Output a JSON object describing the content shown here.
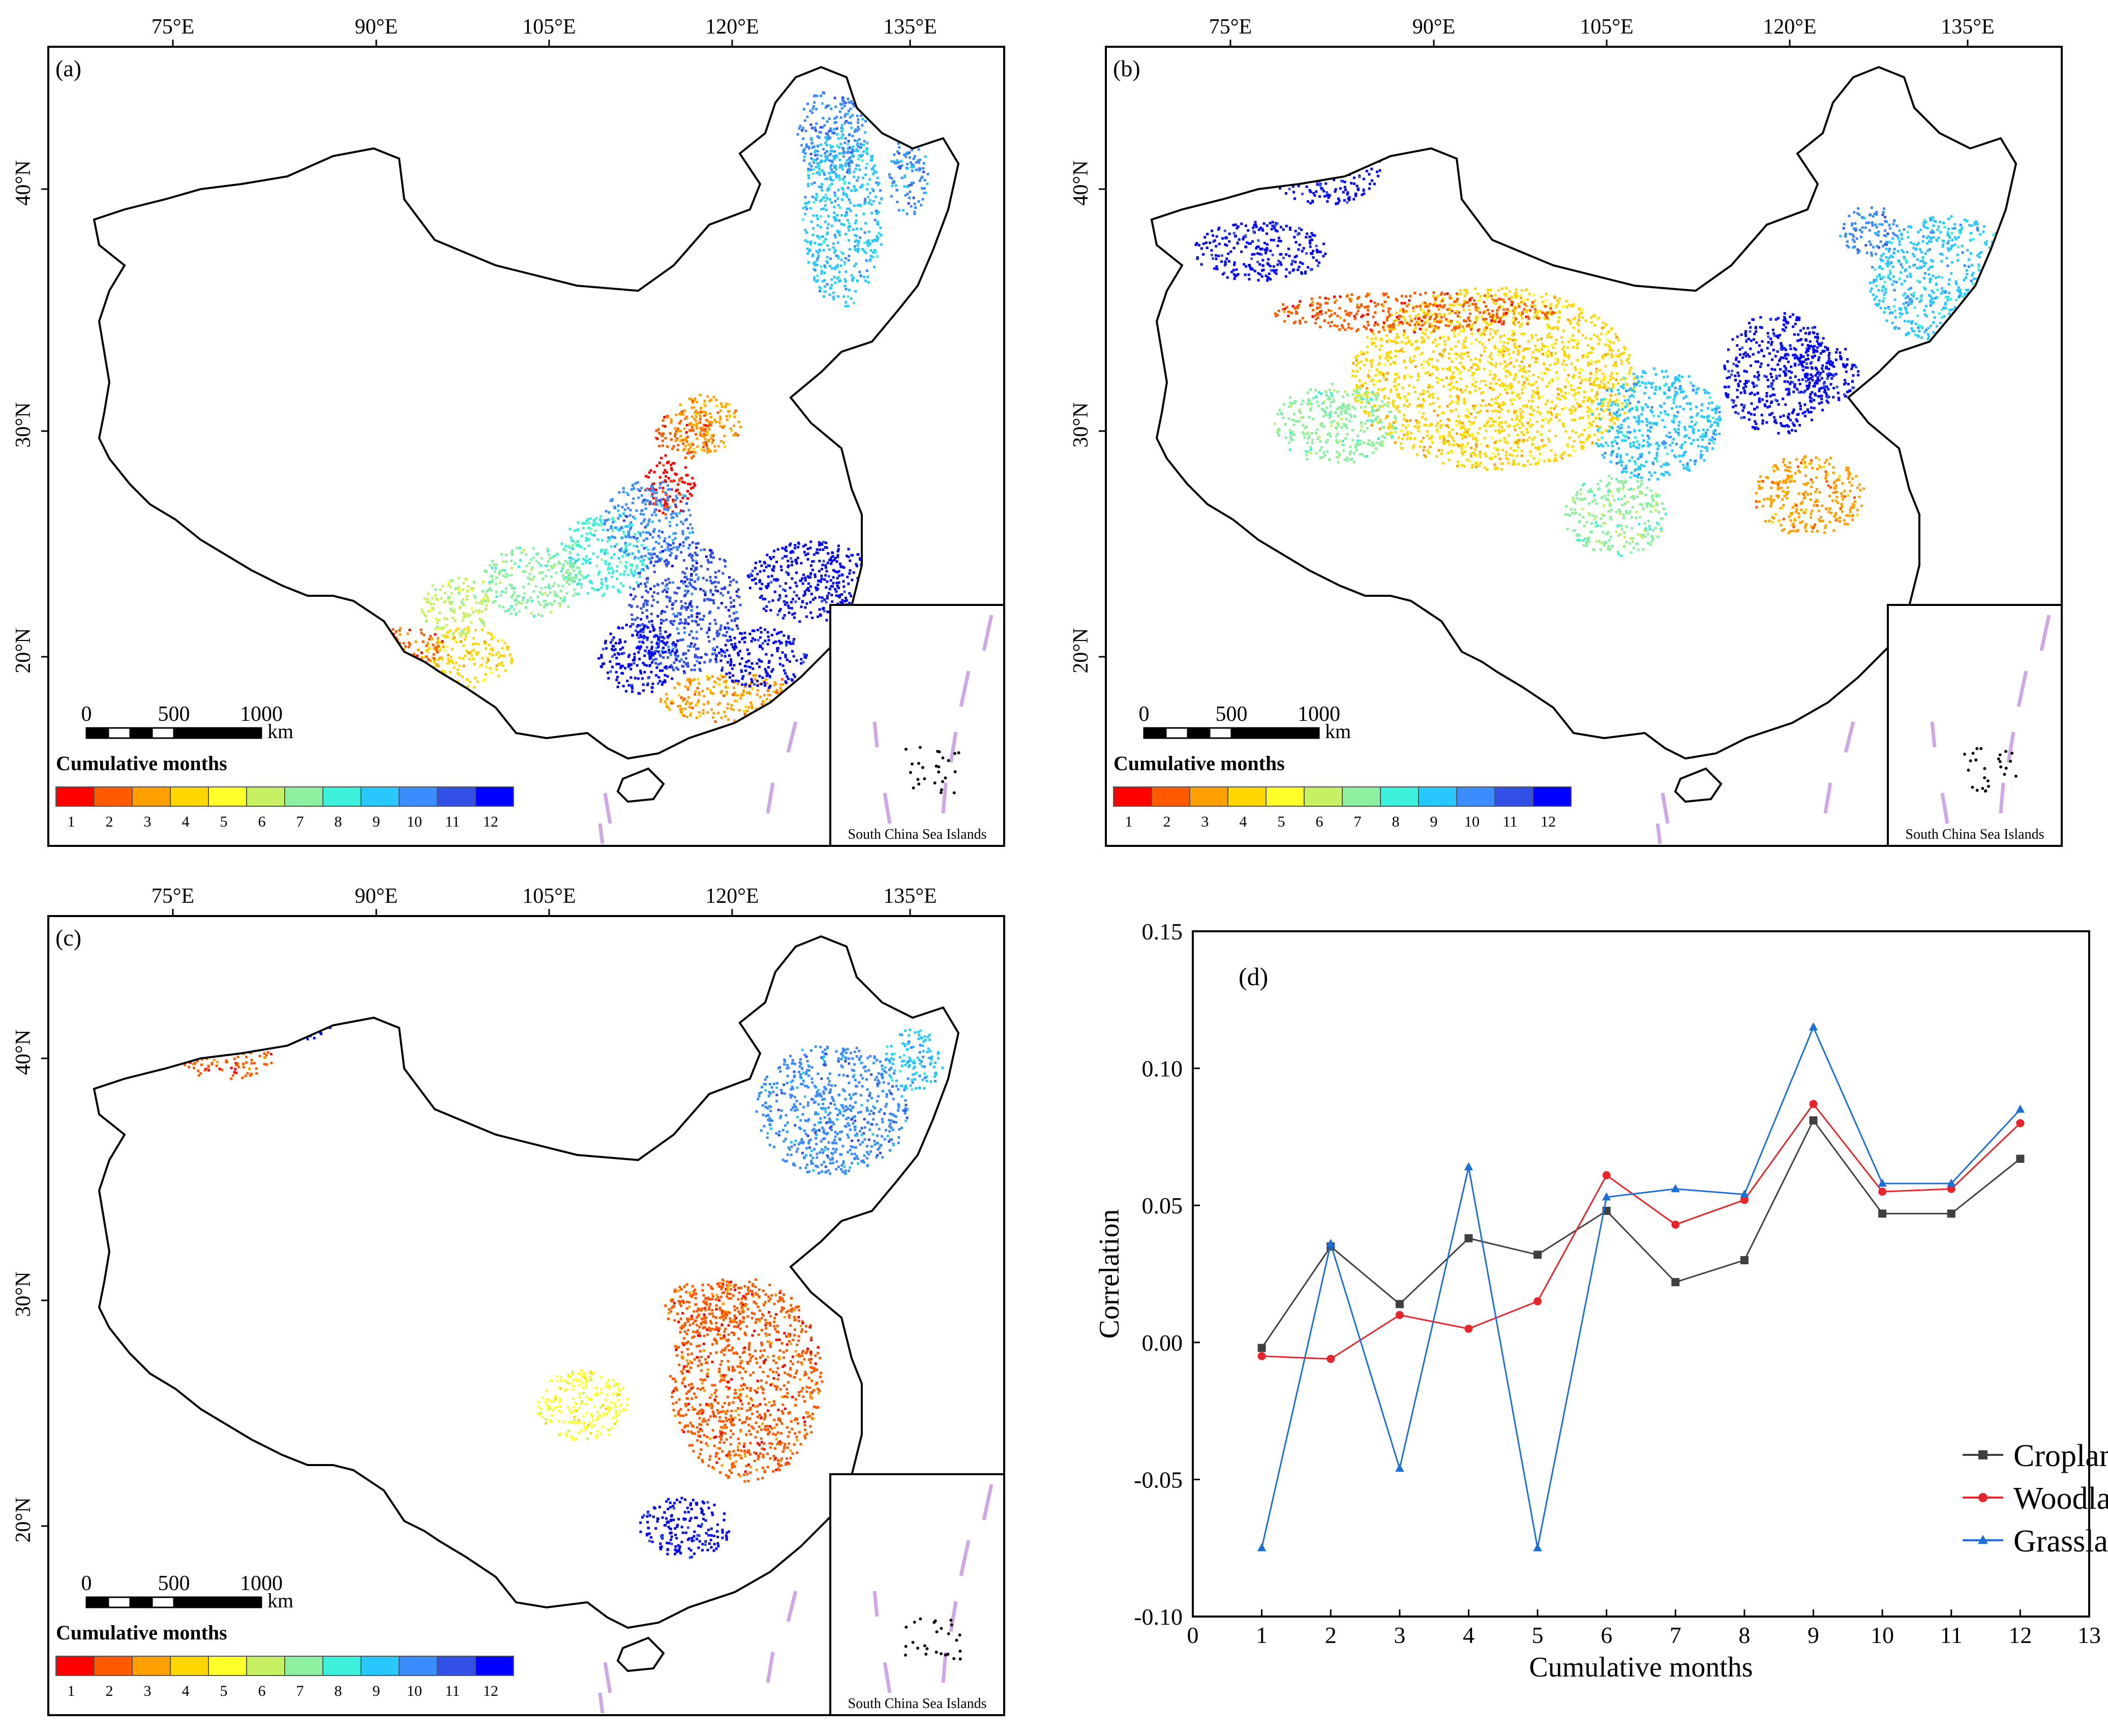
{
  "figure": {
    "panels": [
      {
        "id": "a",
        "panel_label": "(a)",
        "lon_ticks": [
          "75°E",
          "90°E",
          "105°E",
          "120°E",
          "135°E"
        ],
        "lat_ticks": [
          "40°N",
          "30°N",
          "20°N"
        ],
        "scale_labels": [
          "0",
          "500",
          "1000"
        ],
        "scale_unit": "km",
        "legend_title": "Cumulative months",
        "inset_label": "South China Sea Islands"
      },
      {
        "id": "b",
        "panel_label": "(b)",
        "lon_ticks": [
          "75°E",
          "90°E",
          "105°E",
          "120°E",
          "135°E"
        ],
        "lat_ticks": [
          "40°N",
          "30°N",
          "20°N"
        ],
        "scale_labels": [
          "0",
          "500",
          "1000"
        ],
        "scale_unit": "km",
        "legend_title": "Cumulative months",
        "inset_label": "South China Sea Islands"
      },
      {
        "id": "c",
        "panel_label": "(c)",
        "lon_ticks": [
          "75°E",
          "90°E",
          "105°E",
          "120°E",
          "135°E"
        ],
        "lat_ticks": [
          "40°N",
          "30°N",
          "20°N"
        ],
        "scale_labels": [
          "0",
          "500",
          "1000"
        ],
        "scale_unit": "km",
        "legend_title": "Cumulative months",
        "inset_label": "South China Sea Islands"
      }
    ],
    "legend_classes": [
      {
        "label": "1",
        "color": "#ff0000"
      },
      {
        "label": "2",
        "color": "#ff5a00"
      },
      {
        "label": "3",
        "color": "#ffa000"
      },
      {
        "label": "4",
        "color": "#ffd700"
      },
      {
        "label": "5",
        "color": "#ffff2a"
      },
      {
        "label": "6",
        "color": "#c8f064"
      },
      {
        "label": "7",
        "color": "#8cf0a0"
      },
      {
        "label": "8",
        "color": "#3cf0dc"
      },
      {
        "label": "9",
        "color": "#28c8ff"
      },
      {
        "label": "10",
        "color": "#3c8cff"
      },
      {
        "label": "11",
        "color": "#3250e6"
      },
      {
        "label": "12",
        "color": "#0000ff"
      }
    ]
  },
  "chart_data": {
    "type": "line",
    "panel_label": "(d)",
    "xlabel": "Cumulative months",
    "ylabel": "Correlation",
    "xlim": [
      0,
      13
    ],
    "ylim": [
      -0.1,
      0.15
    ],
    "x_ticks": [
      "0",
      "1",
      "2",
      "3",
      "4",
      "5",
      "6",
      "7",
      "8",
      "9",
      "10",
      "11",
      "12",
      "13"
    ],
    "y_ticks": [
      "-0.10",
      "-0.05",
      "0.00",
      "0.05",
      "0.10",
      "0.15"
    ],
    "x": [
      1,
      2,
      3,
      4,
      5,
      6,
      7,
      8,
      9,
      10,
      11,
      12
    ],
    "series": [
      {
        "name": "Cropland",
        "color": "#404040",
        "marker": "square",
        "values": [
          -0.002,
          0.035,
          0.014,
          0.038,
          0.032,
          0.048,
          0.022,
          0.03,
          0.081,
          0.047,
          0.047,
          0.067
        ]
      },
      {
        "name": "Woodland",
        "color": "#e8252a",
        "marker": "circle",
        "values": [
          -0.005,
          -0.006,
          0.01,
          0.005,
          0.015,
          0.061,
          0.043,
          0.052,
          0.087,
          0.055,
          0.056,
          0.08
        ]
      },
      {
        "name": "Grassland",
        "color": "#1b6fd6",
        "marker": "triangle",
        "values": [
          -0.075,
          0.036,
          -0.046,
          0.064,
          -0.075,
          0.053,
          0.056,
          0.054,
          0.115,
          0.058,
          0.058,
          0.085
        ]
      }
    ],
    "legend_position": "bottom-right"
  }
}
